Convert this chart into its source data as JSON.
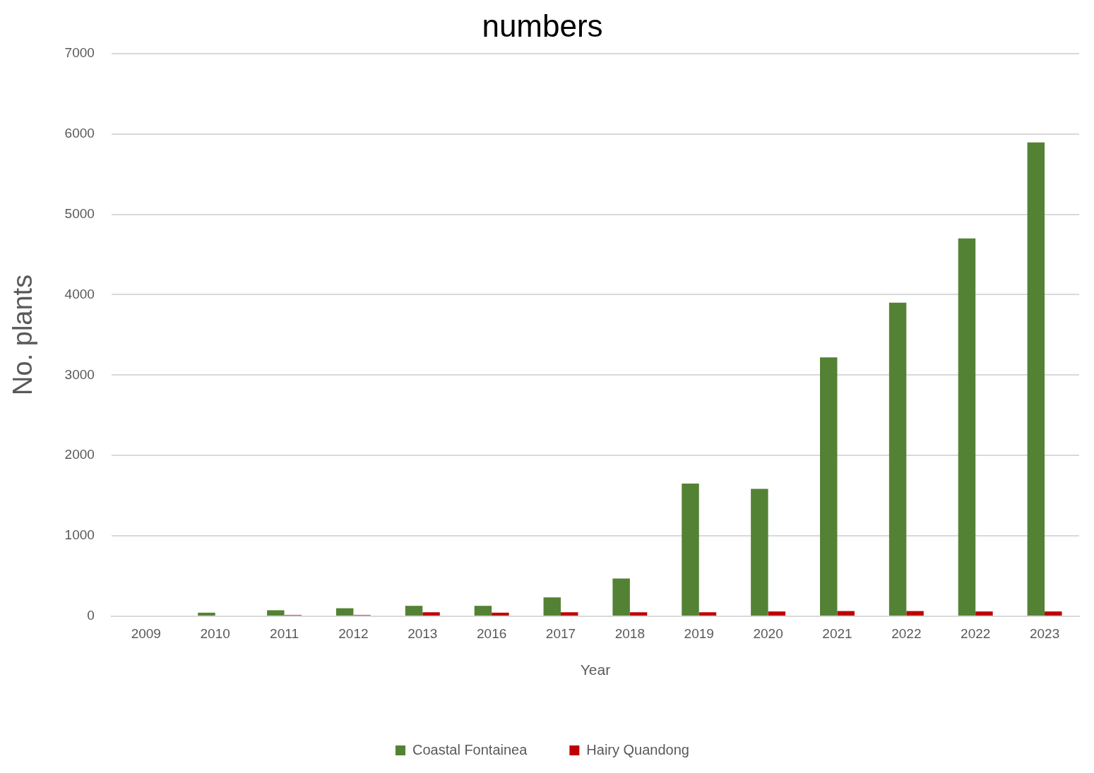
{
  "chart_data": {
    "type": "bar",
    "title": "numbers",
    "xlabel": "Year",
    "ylabel": "No. plants",
    "categories": [
      "2009",
      "2010",
      "2011",
      "2012",
      "2013",
      "2016",
      "2017",
      "2018",
      "2019",
      "2020",
      "2021",
      "2022",
      "2022",
      "2023"
    ],
    "series": [
      {
        "name": "Coastal Fontainea",
        "color": "#548235",
        "values": [
          0,
          45,
          75,
          100,
          130,
          130,
          235,
          470,
          1650,
          1585,
          3220,
          3900,
          4700,
          5895
        ]
      },
      {
        "name": "Hairy Quandong",
        "color": "#c00000",
        "values": [
          0,
          0,
          15,
          15,
          50,
          45,
          50,
          50,
          50,
          60,
          65,
          65,
          60,
          60
        ]
      }
    ],
    "ylim": [
      0,
      7000
    ],
    "yticks": [
      0,
      1000,
      2000,
      3000,
      4000,
      5000,
      6000,
      7000
    ],
    "grid": "y",
    "legend": "bottom"
  }
}
